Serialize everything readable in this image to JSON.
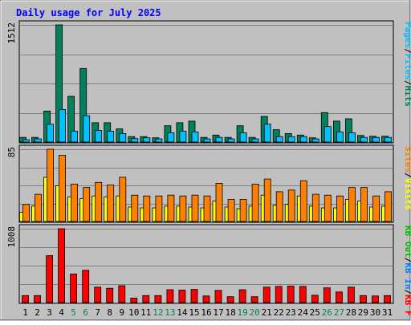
{
  "title": "Daily usage for July 2025",
  "colors": {
    "background": "#C0C0C0",
    "title": "#0000FF",
    "hits": "#00805C",
    "files": "#00C0FF",
    "sites": "#FF8000",
    "visits": "#FFFF00",
    "kbytes": "#FF0000",
    "kb_in": "#0080FF",
    "kb_out": "#00C000",
    "weekend_label": "#00805C",
    "weekday_label": "#000000"
  },
  "chart_data": [
    {
      "type": "bar",
      "panel": "hits-files",
      "ymax_label": "1512",
      "ylim": [
        0,
        1512
      ],
      "grid": true,
      "legend": [
        {
          "text": "Hits",
          "color": "#00805C"
        },
        {
          "text": "Files",
          "color": "#00C0FF"
        },
        {
          "text": "Pages",
          "color": "#00C0FF"
        }
      ],
      "categories": [
        "1",
        "2",
        "3",
        "4",
        "5",
        "6",
        "7",
        "8",
        "9",
        "10",
        "11",
        "12",
        "13",
        "14",
        "15",
        "16",
        "17",
        "18",
        "19",
        "20",
        "21",
        "22",
        "23",
        "24",
        "25",
        "26",
        "27",
        "28",
        "29",
        "30",
        "31"
      ],
      "series": [
        {
          "name": "Hits",
          "color": "#00805C",
          "values": [
            60,
            60,
            400,
            1512,
            590,
            950,
            250,
            250,
            170,
            70,
            70,
            55,
            210,
            250,
            270,
            60,
            90,
            60,
            210,
            60,
            330,
            160,
            110,
            90,
            55,
            380,
            270,
            300,
            85,
            75,
            75
          ]
        },
        {
          "name": "Files",
          "color": "#00C0FF",
          "values": [
            30,
            40,
            230,
            420,
            140,
            340,
            150,
            140,
            110,
            45,
            55,
            40,
            120,
            140,
            130,
            40,
            60,
            40,
            120,
            40,
            230,
            70,
            70,
            70,
            40,
            200,
            130,
            120,
            60,
            60,
            60
          ]
        }
      ]
    },
    {
      "type": "bar",
      "panel": "sites-visits",
      "ymax_label": "85",
      "ylim": [
        0,
        85
      ],
      "grid": true,
      "legend": [
        {
          "text": "Visits",
          "color": "#FFFF00"
        },
        {
          "text": "Sites",
          "color": "#FF8000"
        }
      ],
      "categories": [
        "1",
        "2",
        "3",
        "4",
        "5",
        "6",
        "7",
        "8",
        "9",
        "10",
        "11",
        "12",
        "13",
        "14",
        "15",
        "16",
        "17",
        "18",
        "19",
        "20",
        "21",
        "22",
        "23",
        "24",
        "25",
        "26",
        "27",
        "28",
        "29",
        "30",
        "31"
      ],
      "series": [
        {
          "name": "Visits",
          "color": "#FFFF00",
          "values": [
            11,
            18,
            52,
            42,
            29,
            27,
            30,
            29,
            30,
            17,
            16,
            16,
            18,
            18,
            17,
            16,
            24,
            17,
            15,
            18,
            31,
            19,
            20,
            30,
            18,
            16,
            16,
            26,
            24,
            17,
            18
          ]
        },
        {
          "name": "Sites",
          "color": "#FF8000",
          "values": [
            20,
            32,
            85,
            78,
            44,
            40,
            46,
            43,
            52,
            31,
            30,
            30,
            31,
            30,
            31,
            30,
            45,
            26,
            26,
            44,
            50,
            35,
            37,
            48,
            32,
            31,
            30,
            40,
            40,
            30,
            35
          ]
        }
      ]
    },
    {
      "type": "bar",
      "panel": "kbytes",
      "ymax_label": "1008",
      "ylim": [
        0,
        1008
      ],
      "grid": true,
      "legend": [
        {
          "text": "KB F",
          "color": "#FF0000"
        },
        {
          "text": "KB In",
          "color": "#0080FF"
        },
        {
          "text": "KB Out",
          "color": "#00C000"
        }
      ],
      "categories": [
        "1",
        "2",
        "3",
        "4",
        "5",
        "6",
        "7",
        "8",
        "9",
        "10",
        "11",
        "12",
        "13",
        "14",
        "15",
        "16",
        "17",
        "18",
        "19",
        "20",
        "21",
        "22",
        "23",
        "24",
        "25",
        "26",
        "27",
        "28",
        "29",
        "30",
        "31"
      ],
      "series": [
        {
          "name": "KB F",
          "color": "#FF0000",
          "values": [
            95,
            95,
            640,
            1008,
            390,
            440,
            210,
            195,
            230,
            60,
            95,
            95,
            175,
            170,
            180,
            90,
            165,
            80,
            175,
            80,
            210,
            220,
            225,
            220,
            100,
            200,
            145,
            210,
            95,
            90,
            95
          ]
        }
      ]
    }
  ],
  "day_labels": [
    {
      "text": "1",
      "weekend": false
    },
    {
      "text": "2",
      "weekend": false
    },
    {
      "text": "3",
      "weekend": false
    },
    {
      "text": "4",
      "weekend": false
    },
    {
      "text": "5",
      "weekend": true
    },
    {
      "text": "6",
      "weekend": true
    },
    {
      "text": "7",
      "weekend": false
    },
    {
      "text": "8",
      "weekend": false
    },
    {
      "text": "9",
      "weekend": false
    },
    {
      "text": "10",
      "weekend": false
    },
    {
      "text": "11",
      "weekend": false
    },
    {
      "text": "12",
      "weekend": true
    },
    {
      "text": "13",
      "weekend": true
    },
    {
      "text": "14",
      "weekend": false
    },
    {
      "text": "15",
      "weekend": false
    },
    {
      "text": "16",
      "weekend": false
    },
    {
      "text": "17",
      "weekend": false
    },
    {
      "text": "18",
      "weekend": false
    },
    {
      "text": "19",
      "weekend": true
    },
    {
      "text": "20",
      "weekend": true
    },
    {
      "text": "21",
      "weekend": false
    },
    {
      "text": "22",
      "weekend": false
    },
    {
      "text": "23",
      "weekend": false
    },
    {
      "text": "24",
      "weekend": false
    },
    {
      "text": "25",
      "weekend": false
    },
    {
      "text": "26",
      "weekend": true
    },
    {
      "text": "27",
      "weekend": true
    },
    {
      "text": "28",
      "weekend": false
    },
    {
      "text": "29",
      "weekend": false
    },
    {
      "text": "30",
      "weekend": false
    },
    {
      "text": "31",
      "weekend": false
    }
  ]
}
